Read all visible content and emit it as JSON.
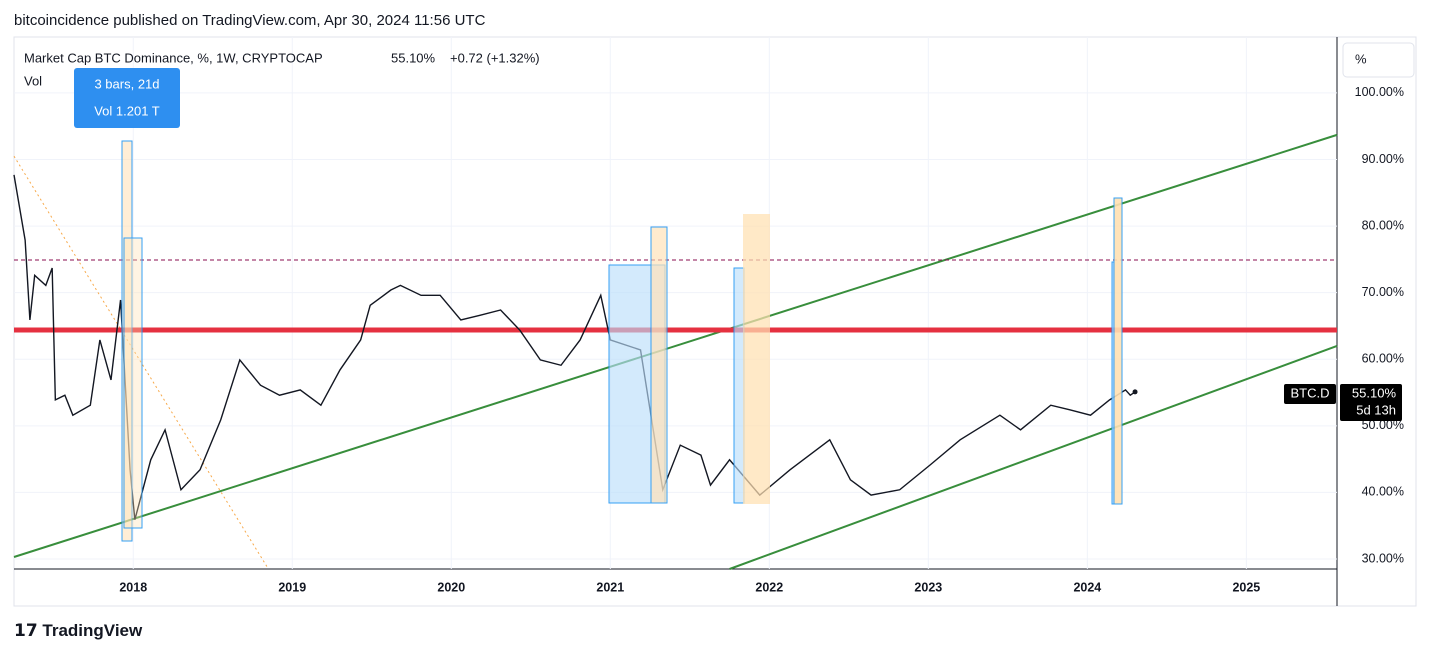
{
  "header": "bitcoincidence published on TradingView.com, Apr 30, 2024 11:56 UTC",
  "chart_data": {
    "type": "line",
    "title": "Market Cap BTC Dominance, %, 1W, CRYPTOCAP",
    "last_value_label": "55.10%",
    "change_label": "+0.72 (+1.32%)",
    "volume_label": "Vol",
    "tooltip": [
      "3 bars, 21d",
      "Vol 1.201 T"
    ],
    "scale_button": "%",
    "symbol": "BTC.D",
    "countdown": "5d 13h",
    "color": "#131722",
    "x": [
      2017.25,
      2017.32,
      2017.35,
      2017.38,
      2017.45,
      2017.49,
      2017.51,
      2017.57,
      2017.62,
      2017.73,
      2017.79,
      2017.86,
      2017.92,
      2017.98,
      2018.01,
      2018.11,
      2018.2,
      2018.3,
      2018.42,
      2018.55,
      2018.67,
      2018.8,
      2018.92,
      2019.05,
      2019.18,
      2019.3,
      2019.43,
      2019.49,
      2019.62,
      2019.68,
      2019.81,
      2019.93,
      2020.06,
      2020.18,
      2020.31,
      2020.43,
      2020.56,
      2020.69,
      2020.81,
      2020.94,
      2021.0,
      2021.19,
      2021.25,
      2021.33,
      2021.44,
      2021.57,
      2021.63,
      2021.75,
      2021.94,
      2022.13,
      2022.38,
      2022.51,
      2022.64,
      2022.82,
      2023.01,
      2023.2,
      2023.45,
      2023.58,
      2023.77,
      2023.89,
      2024.02,
      2024.14,
      2024.24,
      2024.27,
      2024.3
    ],
    "values": [
      87.7,
      77.9,
      65.9,
      72.6,
      71.1,
      73.7,
      53.9,
      54.6,
      51.6,
      53.1,
      62.9,
      56.9,
      68.9,
      43.4,
      35.9,
      44.9,
      49.4,
      40.4,
      43.4,
      50.9,
      59.9,
      56.1,
      54.6,
      55.4,
      53.1,
      58.4,
      62.9,
      68.1,
      70.4,
      71.1,
      69.6,
      69.6,
      65.9,
      66.6,
      67.4,
      64.4,
      59.9,
      59.1,
      62.9,
      69.6,
      62.9,
      61.4,
      52.4,
      40.4,
      47.1,
      45.6,
      41.1,
      44.9,
      39.6,
      43.4,
      47.9,
      41.9,
      39.6,
      40.4,
      44.1,
      47.9,
      51.6,
      49.4,
      53.1,
      52.4,
      51.6,
      53.9,
      55.4,
      54.6,
      55.1
    ],
    "xlim": [
      2017.25,
      2025.57
    ],
    "xticks": [
      2018,
      2019,
      2020,
      2021,
      2022,
      2023,
      2024,
      2025
    ],
    "ylim": [
      28.5,
      108.4
    ],
    "yticks": [
      {
        "value": 30,
        "label": "30.00%"
      },
      {
        "value": 40,
        "label": "40.00%"
      },
      {
        "value": 50,
        "label": "50.00%"
      },
      {
        "value": 60,
        "label": "60.00%"
      },
      {
        "value": 70,
        "label": "70.00%"
      },
      {
        "value": 80,
        "label": "80.00%"
      },
      {
        "value": 90,
        "label": "90.00%"
      },
      {
        "value": 100,
        "label": "100.00%"
      }
    ],
    "grid": true,
    "hlines": [
      {
        "value": 64.4,
        "color": "#e53140",
        "dashed": false
      },
      {
        "value": 74.9,
        "color": "#880e4f",
        "dashed": true
      }
    ],
    "drawings": [
      {
        "x": [
          2017.25,
          2025.57
        ],
        "values": [
          30.3,
          93.7
        ],
        "color": "#388e3c"
      },
      {
        "x": [
          2021.75,
          2025.57
        ],
        "values": [
          28.5,
          62.0
        ],
        "color": "#388e3c"
      },
      {
        "x": [
          2017.25,
          2018.85
        ],
        "values": [
          90.5,
          28.5
        ],
        "color": "#f7a94a"
      }
    ]
  },
  "footer": "TradingView"
}
